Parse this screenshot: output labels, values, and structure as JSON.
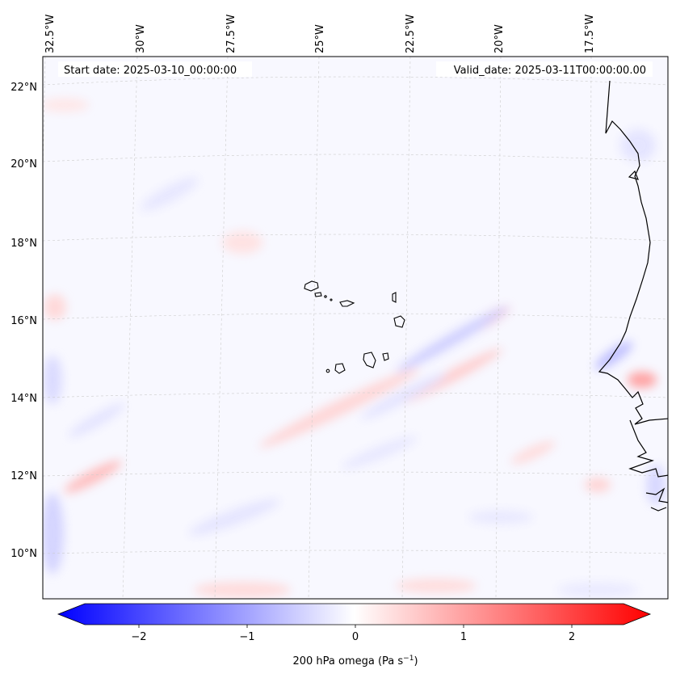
{
  "header": {
    "start_date": "Start date: 2025-03-10_00:00:00",
    "valid_date": "Valid_date: 2025-03-11T00:00:00.00"
  },
  "map": {
    "lon_labels": [
      "32.5°W",
      "30°W",
      "27.5°W",
      "25°W",
      "22.5°W",
      "20°W",
      "17.5°W"
    ],
    "lat_labels": [
      "22°N",
      "20°N",
      "18°N",
      "16°N",
      "14°N",
      "12°N",
      "10°N"
    ]
  },
  "colorbar": {
    "ticks": [
      "−2",
      "−1",
      "0",
      "1",
      "2"
    ],
    "label": "200 hPa omega (Pa s",
    "label_sup": "−1",
    "label_end": ")",
    "colors": {
      "neg": "#0000ff",
      "zero": "#ffffff",
      "pos": "#ff0000"
    }
  }
}
